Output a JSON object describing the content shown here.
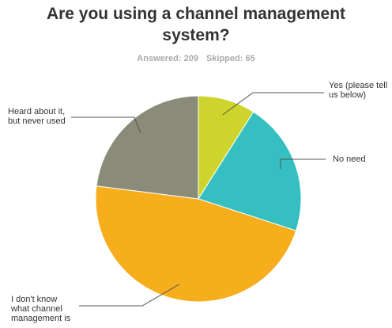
{
  "chart_data": {
    "type": "pie",
    "title": "Are you using a channel management system?",
    "answered": "Answered: 209",
    "skipped": "Skipped: 65",
    "categories": [
      "Yes (please tell us below)",
      "No need",
      "I don't know what channel management is",
      "Heard about it, but never used"
    ],
    "values": [
      9,
      21,
      47,
      23
    ],
    "colors": [
      "#cdd52c",
      "#35bfc0",
      "#f7ae1d",
      "#8b8b79"
    ]
  }
}
